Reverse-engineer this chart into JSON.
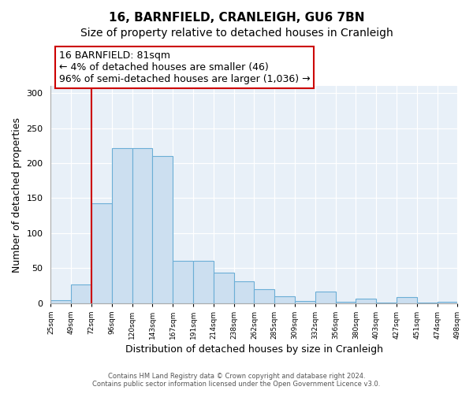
{
  "title": "16, BARNFIELD, CRANLEIGH, GU6 7BN",
  "subtitle": "Size of property relative to detached houses in Cranleigh",
  "xlabel": "Distribution of detached houses by size in Cranleigh",
  "ylabel": "Number of detached properties",
  "footer_line1": "Contains HM Land Registry data © Crown copyright and database right 2024.",
  "footer_line2": "Contains public sector information licensed under the Open Government Licence v3.0.",
  "bar_labels": [
    "25sqm",
    "49sqm",
    "72sqm",
    "96sqm",
    "120sqm",
    "143sqm",
    "167sqm",
    "191sqm",
    "214sqm",
    "238sqm",
    "262sqm",
    "285sqm",
    "309sqm",
    "332sqm",
    "356sqm",
    "380sqm",
    "403sqm",
    "427sqm",
    "451sqm",
    "474sqm",
    "498sqm"
  ],
  "bar_values": [
    4,
    27,
    143,
    222,
    222,
    210,
    60,
    60,
    43,
    31,
    20,
    10,
    3,
    16,
    2,
    6,
    1,
    9,
    1,
    2
  ],
  "bar_color": "#ccdff0",
  "bar_edge_color": "#6baed6",
  "background_color": "#e8f0f8",
  "vline_x_index": 2,
  "vline_color": "#cc0000",
  "annotation_line1": "16 BARNFIELD: 81sqm",
  "annotation_line2": "← 4% of detached houses are smaller (46)",
  "annotation_line3": "96% of semi-detached houses are larger (1,036) →",
  "ylim": [
    0,
    310
  ],
  "yticks": [
    0,
    50,
    100,
    150,
    200,
    250,
    300
  ],
  "title_fontsize": 11,
  "subtitle_fontsize": 10,
  "ylabel_fontsize": 9,
  "xlabel_fontsize": 9,
  "annotation_fontsize": 9,
  "footer_fontsize": 6
}
